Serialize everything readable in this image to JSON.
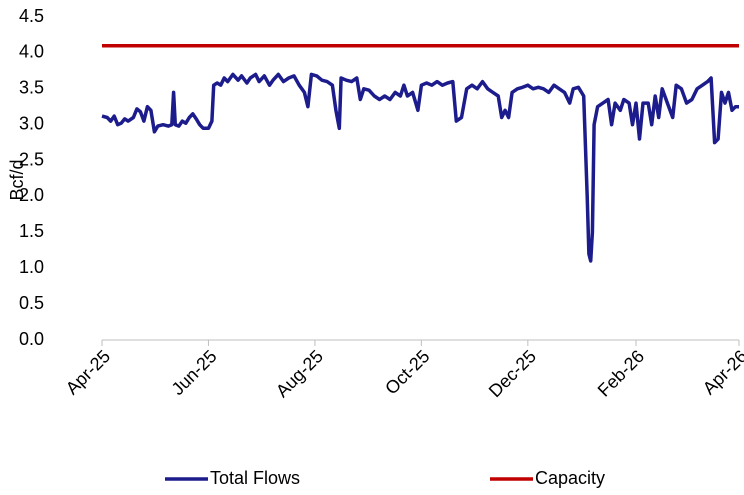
{
  "chart_data": {
    "type": "line",
    "ylabel": "Bcf/d",
    "xlim": [
      0,
      365
    ],
    "xticks": [
      {
        "value": 0,
        "label": "Apr-25"
      },
      {
        "value": 61,
        "label": "Jun-25"
      },
      {
        "value": 122,
        "label": "Aug-25"
      },
      {
        "value": 183,
        "label": "Oct-25"
      },
      {
        "value": 244,
        "label": "Dec-25"
      },
      {
        "value": 306,
        "label": "Feb-26"
      },
      {
        "value": 365,
        "label": "Apr-26"
      }
    ],
    "ylim": [
      0,
      4.5
    ],
    "yticks": [
      {
        "value": 0,
        "label": "0.0"
      },
      {
        "value": 0.5,
        "label": "0.5"
      },
      {
        "value": 1,
        "label": "1.0"
      },
      {
        "value": 1.5,
        "label": "1.5"
      },
      {
        "value": 2,
        "label": "2.0"
      },
      {
        "value": 2.5,
        "label": "2.5"
      },
      {
        "value": 3,
        "label": "3.0"
      },
      {
        "value": 3.5,
        "label": "3.5"
      },
      {
        "value": 4,
        "label": "4.0"
      },
      {
        "value": 4.5,
        "label": "4.5"
      }
    ],
    "grid": false,
    "legend": "bottom",
    "series": [
      {
        "name": "Total Flows",
        "color": "#1c1c8c",
        "x": [
          0,
          3,
          5,
          7,
          9,
          11,
          13,
          15,
          18,
          20,
          22,
          24,
          26,
          28,
          30,
          32,
          35,
          38,
          40,
          41,
          42,
          44,
          46,
          48,
          50,
          52,
          54,
          56,
          58,
          61,
          63,
          64,
          66,
          68,
          70,
          72,
          75,
          78,
          80,
          83,
          85,
          88,
          90,
          93,
          96,
          98,
          101,
          104,
          107,
          110,
          113,
          116,
          118,
          120,
          123,
          126,
          129,
          132,
          134,
          136,
          137,
          140,
          143,
          146,
          148,
          150,
          153,
          156,
          159,
          162,
          165,
          168,
          171,
          173,
          175,
          178,
          181,
          183,
          186,
          189,
          192,
          195,
          198,
          201,
          203,
          206,
          209,
          212,
          215,
          218,
          221,
          224,
          227,
          229,
          231,
          233,
          235,
          238,
          241,
          244,
          247,
          250,
          253,
          256,
          259,
          262,
          265,
          268,
          270,
          273,
          276,
          278,
          279,
          280,
          281,
          282,
          284,
          287,
          290,
          292,
          294,
          297,
          299,
          302,
          304,
          306,
          308,
          310,
          313,
          315,
          317,
          319,
          321,
          324,
          327,
          329,
          332,
          335,
          338,
          341,
          344,
          347,
          349,
          351,
          353,
          355,
          357,
          359,
          361,
          363,
          365
        ],
        "values": [
          3.12,
          3.1,
          3.05,
          3.12,
          3.0,
          3.02,
          3.08,
          3.05,
          3.1,
          3.22,
          3.18,
          3.05,
          3.25,
          3.2,
          2.9,
          2.98,
          3.0,
          2.98,
          3.0,
          3.45,
          3.0,
          2.98,
          3.05,
          3.02,
          3.1,
          3.15,
          3.08,
          3.0,
          2.95,
          2.95,
          3.05,
          3.55,
          3.58,
          3.55,
          3.65,
          3.6,
          3.7,
          3.62,
          3.68,
          3.58,
          3.65,
          3.7,
          3.6,
          3.68,
          3.55,
          3.62,
          3.7,
          3.6,
          3.65,
          3.68,
          3.55,
          3.45,
          3.25,
          3.7,
          3.68,
          3.62,
          3.6,
          3.55,
          3.2,
          2.95,
          3.65,
          3.62,
          3.6,
          3.65,
          3.35,
          3.5,
          3.48,
          3.4,
          3.35,
          3.4,
          3.35,
          3.45,
          3.4,
          3.55,
          3.4,
          3.45,
          3.2,
          3.55,
          3.58,
          3.55,
          3.6,
          3.55,
          3.58,
          3.6,
          3.05,
          3.1,
          3.5,
          3.55,
          3.5,
          3.6,
          3.5,
          3.45,
          3.4,
          3.1,
          3.2,
          3.1,
          3.45,
          3.5,
          3.52,
          3.55,
          3.5,
          3.52,
          3.5,
          3.45,
          3.55,
          3.5,
          3.45,
          3.3,
          3.5,
          3.52,
          3.4,
          2.0,
          1.2,
          1.1,
          1.5,
          3.0,
          3.25,
          3.3,
          3.35,
          3.0,
          3.3,
          3.2,
          3.35,
          3.3,
          3.0,
          3.3,
          2.8,
          3.3,
          3.3,
          3.0,
          3.4,
          3.1,
          3.5,
          3.3,
          3.1,
          3.55,
          3.5,
          3.3,
          3.35,
          3.5,
          3.55,
          3.6,
          3.65,
          2.75,
          2.8,
          3.45,
          3.3,
          3.45,
          3.2,
          3.25,
          3.25
        ]
      },
      {
        "name": "Capacity",
        "color": "#c00000",
        "x": [
          0,
          365
        ],
        "values": [
          4.1,
          4.1
        ]
      }
    ]
  }
}
